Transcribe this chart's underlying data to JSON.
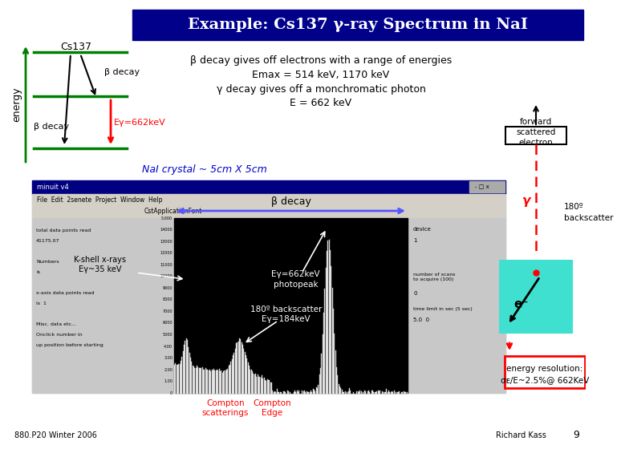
{
  "title": "Example: Cs137 γ-ray Spectrum in NaI",
  "title_bg": "#00008B",
  "title_color": "white",
  "bg_color": "white",
  "energy_label": "energy",
  "cs137_label": "Cs137",
  "beta_decay_upper": "β decay",
  "beta_decay_lower": "β decay",
  "egamma_label": "Eγ=662keV",
  "text_block_1": "β decay gives off electrons with a range of energies",
  "text_block_2": "Emax = 514 keV, 1170 keV",
  "text_block_3": "γ decay gives off a monchromatic photon",
  "text_block_4": "E = 662 keV",
  "nai_crystal": "NaI crystal ~ 5cm X 5cm",
  "forward_scattered": "forward\nscattered\nelectron",
  "backscatter_label": "180º\nbackscatter",
  "gamma_label": "γ",
  "eminus_label": "e⁻",
  "energy_res_1": "energy resolution:",
  "energy_res_2": "σᴇ/E~2.5%@ 662KeV",
  "beta_decay_arrow_label": "β decay",
  "k_shell_label": "K-shell x-rays\nEγ~35 keV",
  "photopeak_label": "Eγ=662keV\nphotopeak",
  "backscatter184_label": "180º backscatter\nEγ=184keV",
  "compton_scat_label": "Compton\nscatterings",
  "compton_edge_label": "Compton\nEdge",
  "footer_left": "880.P20 Winter 2006",
  "footer_right": "Richard Kass",
  "page_num": "9",
  "detector_color": "#40E0D0",
  "nai_label_color": "#0000CD",
  "window_gray": "#c8c8c8",
  "window_blue": "#000080",
  "plot_gray": "#d0d0d0"
}
